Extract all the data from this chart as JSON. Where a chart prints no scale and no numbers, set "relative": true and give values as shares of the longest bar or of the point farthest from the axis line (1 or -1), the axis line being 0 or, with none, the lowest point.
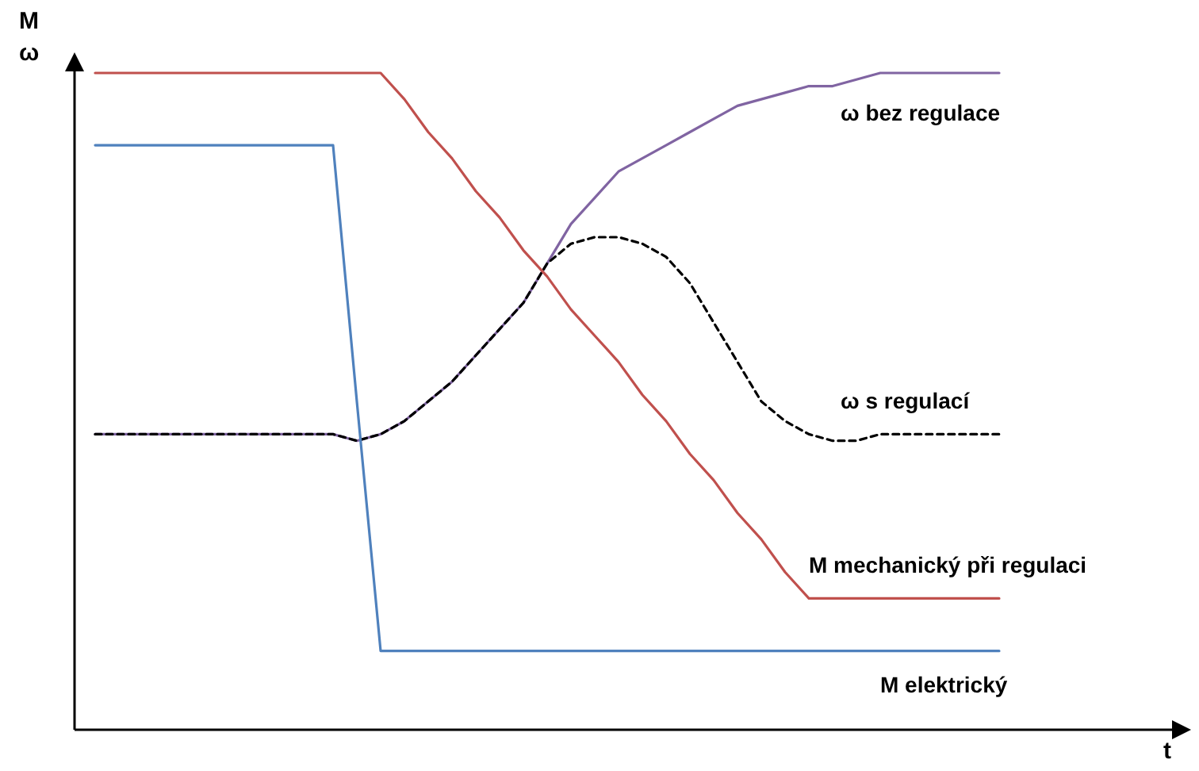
{
  "chart_data": {
    "type": "line",
    "relative": true,
    "annotations": [
      "t"
    ],
    "ylabel": "M\nω",
    "categories": [
      null,
      null,
      null,
      null,
      null,
      null,
      null,
      null,
      null,
      null,
      null,
      null,
      null,
      null,
      null,
      null,
      null,
      null,
      null,
      null,
      null,
      null,
      null,
      null,
      null,
      null,
      null,
      null,
      null,
      null,
      null,
      null,
      null,
      null,
      null,
      null,
      null,
      null,
      null
    ],
    "series": [
      {
        "name": "ω bez regulace",
        "color": "#8064a2",
        "line_style": "solid",
        "values": [
          0.45,
          0.45,
          0.45,
          0.45,
          0.45,
          0.45,
          0.45,
          0.45,
          0.45,
          0.45,
          0.45,
          0.44,
          0.45,
          0.47,
          0.5,
          0.53,
          0.57,
          0.61,
          0.65,
          0.71,
          0.77,
          0.81,
          0.85,
          0.87,
          0.89,
          0.91,
          0.93,
          0.95,
          0.96,
          0.97,
          0.98,
          0.98,
          0.99,
          1,
          1,
          1,
          1,
          1,
          1
        ]
      },
      {
        "name": "ω s regulací",
        "color": "#000000",
        "line_style": "dashed",
        "values": [
          0.45,
          0.45,
          0.45,
          0.45,
          0.45,
          0.45,
          0.45,
          0.45,
          0.45,
          0.45,
          0.45,
          0.44,
          0.45,
          0.47,
          0.5,
          0.53,
          0.57,
          0.61,
          0.65,
          0.71,
          0.74,
          0.75,
          0.75,
          0.74,
          0.72,
          0.68,
          0.62,
          0.56,
          0.5,
          0.47,
          0.45,
          0.44,
          0.44,
          0.45,
          0.45,
          0.45,
          0.45,
          0.45,
          0.45
        ]
      },
      {
        "name": "M mechanický při regulaci",
        "color": "#c0504d",
        "line_style": "solid",
        "values": [
          1,
          1,
          1,
          1,
          1,
          1,
          1,
          1,
          1,
          1,
          1,
          1,
          1,
          0.96,
          0.91,
          0.87,
          0.82,
          0.78,
          0.73,
          0.69,
          0.64,
          0.6,
          0.56,
          0.51,
          0.47,
          0.42,
          0.38,
          0.33,
          0.29,
          0.24,
          0.2,
          0.2,
          0.2,
          0.2,
          0.2,
          0.2,
          0.2,
          0.2,
          0.2
        ]
      },
      {
        "name": "M elektrický",
        "color": "#4f81bd",
        "line_style": "solid",
        "values": [
          0.89,
          0.89,
          0.89,
          0.89,
          0.89,
          0.89,
          0.89,
          0.89,
          0.89,
          0.89,
          0.89,
          0.5,
          0.12,
          0.12,
          0.12,
          0.12,
          0.12,
          0.12,
          0.12,
          0.12,
          0.12,
          0.12,
          0.12,
          0.12,
          0.12,
          0.12,
          0.12,
          0.12,
          0.12,
          0.12,
          0.12,
          0.12,
          0.12,
          0.12,
          0.12,
          0.12,
          0.12,
          0.12,
          0.12
        ]
      }
    ]
  }
}
